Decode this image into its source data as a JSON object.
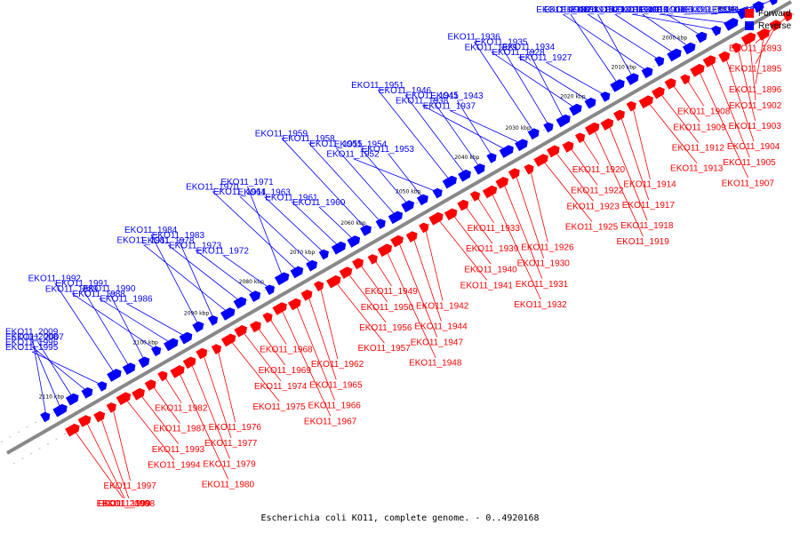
{
  "caption": "Escherichia coli KO11, complete genome. - 0..4920168",
  "legend": [
    {
      "label": "Forward",
      "color": "#ff0000"
    },
    {
      "label": "Reverse",
      "color": "#0000ff"
    }
  ],
  "colors": {
    "forward": "#ff0000",
    "reverse": "#0000ff",
    "axis": "#888888",
    "text_dark": "#000000"
  },
  "ticks": [
    "1990 kbp",
    "2000 kbp",
    "2010 kbp",
    "2020 kbp",
    "2030 kbp",
    "2040 kbp",
    "2050 kbp",
    "2060 kbp",
    "2070 kbp",
    "2080 kbp",
    "2090 kbp",
    "2100 kbp",
    "2110 kbp"
  ],
  "reverse_genes": [
    "EKO11_1897",
    "EKO11_1898",
    "EKO11_1899",
    "EKO11_1900",
    "EKO11_1901",
    "EKO11_1906",
    "EKO11_1910",
    "EKO11_1911",
    "EKO11_1915",
    "EKO11_1916",
    "EKO11_1921",
    "EKO11_1924",
    "EKO11_1927",
    "EKO11_1928",
    "EKO11_1929",
    "EKO11_1934",
    "EKO11_1935",
    "EKO11_1936",
    "EKO11_1937",
    "EKO11_1938",
    "EKO11_1943",
    "EKO11_1945",
    "EKO11_1946",
    "EKO11_1951",
    "EKO11_1952",
    "EKO11_1953",
    "EKO11_1954",
    "EKO11_1955",
    "EKO11_1958",
    "EKO11_1959",
    "EKO11_1960",
    "EKO11_1961",
    "EKO11_1963",
    "EKO11_1964",
    "EKO11_1970",
    "EKO11_1971",
    "EKO11_1972",
    "EKO11_1973",
    "EKO11_1978",
    "EKO11_1981",
    "EKO11_1983",
    "EKO11_1984",
    "EKO11_1986",
    "EKO11_1988",
    "EKO11_1989",
    "EKO11_1990",
    "EKO11_1991",
    "EKO11_1992",
    "EKO11_1995",
    "EKO11_1996",
    "EKO11_2007",
    "EKO11_2008",
    "EKO11_2009"
  ],
  "forward_genes": [
    "EKO11_1893",
    "EKO11_1895",
    "EKO11_1896",
    "EKO11_1902",
    "EKO11_1903",
    "EKO11_1904",
    "EKO11_1905",
    "EKO11_1907",
    "EKO11_1908",
    "EKO11_1909",
    "EKO11_1912",
    "EKO11_1913",
    "EKO11_1914",
    "EKO11_1917",
    "EKO11_1918",
    "EKO11_1919",
    "EKO11_1920",
    "EKO11_1922",
    "EKO11_1923",
    "EKO11_1925",
    "EKO11_1926",
    "EKO11_1930",
    "EKO11_1931",
    "EKO11_1932",
    "EKO11_1933",
    "EKO11_1939",
    "EKO11_1940",
    "EKO11_1941",
    "EKO11_1942",
    "EKO11_1944",
    "EKO11_1947",
    "EKO11_1948",
    "EKO11_1949",
    "EKO11_1950",
    "EKO11_1956",
    "EKO11_1957",
    "EKO11_1962",
    "EKO11_1965",
    "EKO11_1966",
    "EKO11_1967",
    "EKO11_1968",
    "EKO11_1969",
    "EKO11_1974",
    "EKO11_1975",
    "EKO11_1976",
    "EKO11_1977",
    "EKO11_1979",
    "EKO11_1980",
    "EKO11_1982",
    "EKO11_1987",
    "EKO11_1993",
    "EKO11_1994",
    "EKO11_1997",
    "EKO11_1998",
    "EKO11_1999",
    "EKO11_2000"
  ]
}
